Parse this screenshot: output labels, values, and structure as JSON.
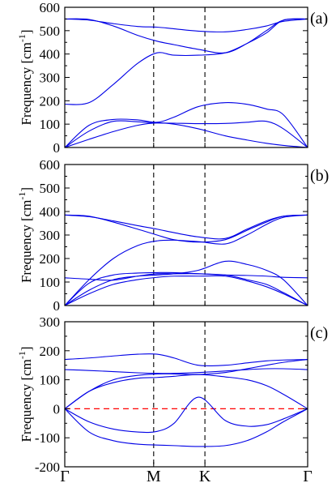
{
  "chart_data": [
    {
      "type": "line",
      "panel_label": "(a)",
      "ylabel": "Frequency [cm",
      "ylabel_exp": "-1",
      "ylabel_close": "]",
      "ylim": [
        0,
        600
      ],
      "yticks": [
        0,
        100,
        200,
        300,
        400,
        500,
        600
      ],
      "xlim": [
        0,
        1
      ],
      "x": [
        0,
        0.1,
        0.2,
        0.3,
        0.38,
        0.45,
        0.55,
        0.66,
        0.75,
        0.83,
        0.9,
        1
      ],
      "series": [
        {
          "values": [
            0,
            35,
            68,
            95,
            105,
            100,
            80,
            50,
            32,
            18,
            9,
            0
          ]
        },
        {
          "values": [
            0,
            70,
            112,
            110,
            105,
            104,
            102,
            103,
            108,
            112,
            80,
            0
          ]
        },
        {
          "values": [
            0,
            95,
            120,
            118,
            108,
            130,
            175,
            192,
            185,
            165,
            140,
            0
          ]
        },
        {
          "values": [
            185,
            192,
            270,
            360,
            405,
            395,
            395,
            405,
            445,
            490,
            545,
            550
          ]
        },
        {
          "values": [
            550,
            548,
            520,
            480,
            455,
            440,
            420,
            405,
            445,
            500,
            545,
            550
          ]
        },
        {
          "values": [
            550,
            545,
            530,
            518,
            515,
            508,
            498,
            495,
            505,
            520,
            540,
            550
          ]
        }
      ]
    },
    {
      "type": "line",
      "panel_label": "(b)",
      "ylabel": "Frequency [cm",
      "ylabel_exp": "-1",
      "ylabel_close": "]",
      "ylim": [
        0,
        600
      ],
      "yticks": [
        0,
        100,
        200,
        300,
        400,
        500,
        600
      ],
      "xlim": [
        0,
        1
      ],
      "x": [
        0,
        0.1,
        0.2,
        0.3,
        0.38,
        0.45,
        0.55,
        0.66,
        0.75,
        0.83,
        0.9,
        1
      ],
      "series": [
        {
          "values": [
            0,
            50,
            90,
            110,
            120,
            125,
            125,
            125,
            105,
            80,
            50,
            0
          ]
        },
        {
          "values": [
            0,
            65,
            110,
            125,
            130,
            135,
            150,
            188,
            175,
            150,
            110,
            0
          ]
        },
        {
          "values": [
            0,
            95,
            130,
            138,
            140,
            140,
            135,
            130,
            110,
            90,
            55,
            0
          ]
        },
        {
          "values": [
            118,
            112,
            108,
            125,
            135,
            135,
            135,
            130,
            128,
            125,
            120,
            118
          ]
        },
        {
          "values": [
            0,
            110,
            200,
            255,
            275,
            278,
            272,
            262,
            300,
            345,
            375,
            385
          ]
        },
        {
          "values": [
            385,
            380,
            355,
            325,
            300,
            280,
            270,
            280,
            320,
            355,
            380,
            385
          ]
        },
        {
          "values": [
            385,
            378,
            360,
            340,
            325,
            310,
            292,
            285,
            325,
            360,
            380,
            385
          ]
        }
      ]
    },
    {
      "type": "line",
      "panel_label": "(c)",
      "ylabel": "Frequency [cm",
      "ylabel_exp": "-1",
      "ylabel_close": "]",
      "ylim": [
        -200,
        300
      ],
      "yticks": [
        -200,
        -100,
        0,
        100,
        200,
        300
      ],
      "xlim": [
        0,
        1
      ],
      "x_tick_labels": [
        "Γ",
        "M",
        "K",
        "Γ"
      ],
      "x_tick_positions": [
        0,
        0.366,
        0.577,
        1
      ],
      "x": [
        0,
        0.1,
        0.2,
        0.3,
        0.38,
        0.45,
        0.55,
        0.66,
        0.75,
        0.83,
        0.9,
        1
      ],
      "series": [
        {
          "values": [
            170,
            175,
            182,
            188,
            188,
            175,
            150,
            150,
            158,
            165,
            168,
            170
          ]
        },
        {
          "values": [
            135,
            132,
            128,
            124,
            122,
            122,
            125,
            130,
            135,
            138,
            138,
            135
          ]
        },
        {
          "values": [
            0,
            60,
            90,
            105,
            108,
            112,
            118,
            110,
            100,
            80,
            50,
            0
          ]
        },
        {
          "values": [
            0,
            -45,
            -70,
            -80,
            -78,
            -50,
            40,
            -40,
            -60,
            -55,
            -35,
            0
          ]
        },
        {
          "values": [
            0,
            -80,
            -110,
            -122,
            -125,
            -127,
            -130,
            -127,
            -110,
            -80,
            -45,
            0
          ]
        },
        {
          "values": [
            0,
            60,
            100,
            115,
            120,
            120,
            118,
            125,
            138,
            150,
            160,
            170
          ]
        }
      ],
      "zero_line": {
        "y": 0,
        "style": "dashed",
        "color": "#ff0000"
      }
    }
  ],
  "colors": {
    "bands": "#0000e6",
    "zero_line": "#ff0000"
  }
}
